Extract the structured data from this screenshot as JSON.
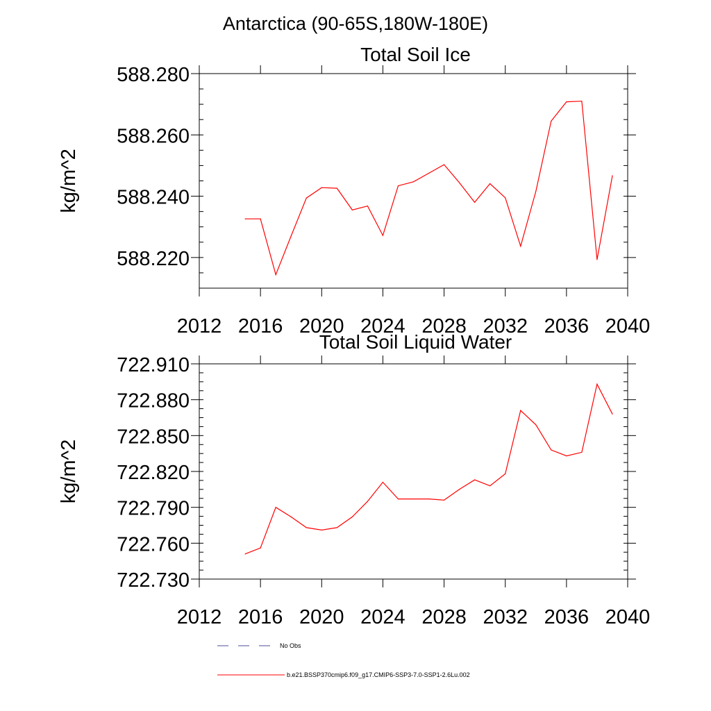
{
  "figure": {
    "title": "Antarctica (90-65S,180W-180E)"
  },
  "chart_data": [
    {
      "type": "line",
      "title": "Total Soil Ice",
      "xlabel": "",
      "ylabel": "kg/m^2",
      "xlim": [
        2012,
        2040
      ],
      "ylim": [
        588.21,
        588.28
      ],
      "xticks": [
        2012,
        2016,
        2020,
        2024,
        2028,
        2032,
        2036,
        2040
      ],
      "xtick_labels": [
        "2012",
        "2016",
        "2020",
        "2024",
        "2028",
        "2032",
        "2036",
        "2040"
      ],
      "yticks": [
        588.22,
        588.24,
        588.26,
        588.28
      ],
      "ytick_labels": [
        "588.220",
        "588.240",
        "588.260",
        "588.280"
      ],
      "grid": false,
      "series": [
        {
          "color": "#ff0000",
          "x": [
            2015,
            2016,
            2017,
            2018,
            2019,
            2020,
            2021,
            2022,
            2023,
            2024,
            2025,
            2026,
            2027,
            2028,
            2029,
            2030,
            2031,
            2032,
            2033,
            2034,
            2035,
            2036,
            2037,
            2038,
            2039
          ],
          "y": [
            588.2326,
            588.2326,
            588.2144,
            588.227,
            588.2394,
            588.2428,
            588.2426,
            588.2355,
            588.2368,
            588.2272,
            588.2434,
            588.2447,
            588.2475,
            588.2503,
            588.2444,
            588.238,
            588.2441,
            588.2395,
            588.2237,
            588.2416,
            588.2645,
            588.2708,
            588.271,
            588.2193,
            588.2467
          ]
        }
      ]
    },
    {
      "type": "line",
      "title": "Total Soil Liquid Water",
      "xlabel": "",
      "ylabel": "kg/m^2",
      "xlim": [
        2012,
        2040
      ],
      "ylim": [
        722.73,
        722.91
      ],
      "xticks": [
        2012,
        2016,
        2020,
        2024,
        2028,
        2032,
        2036,
        2040
      ],
      "xtick_labels": [
        "2012",
        "2016",
        "2020",
        "2024",
        "2028",
        "2032",
        "2036",
        "2040"
      ],
      "yticks": [
        722.73,
        722.76,
        722.79,
        722.82,
        722.85,
        722.88,
        722.91
      ],
      "ytick_labels": [
        "722.730",
        "722.760",
        "722.790",
        "722.820",
        "722.850",
        "722.880",
        "722.910"
      ],
      "grid": false,
      "series": [
        {
          "color": "#ff0000",
          "x": [
            2015,
            2016,
            2017,
            2018,
            2019,
            2020,
            2021,
            2022,
            2023,
            2024,
            2025,
            2026,
            2027,
            2028,
            2029,
            2030,
            2031,
            2032,
            2033,
            2034,
            2035,
            2036,
            2037,
            2038,
            2039
          ],
          "y": [
            722.751,
            722.756,
            722.79,
            722.782,
            722.773,
            722.771,
            722.773,
            722.782,
            722.795,
            722.811,
            722.797,
            722.797,
            722.797,
            722.796,
            722.805,
            722.813,
            722.808,
            722.818,
            722.871,
            722.859,
            722.838,
            722.833,
            722.836,
            722.893,
            722.868
          ]
        }
      ]
    }
  ],
  "legend": {
    "placement": "bottom-left",
    "items": [
      {
        "label": "No Obs",
        "color": "#4d4d99",
        "style": "dashed"
      },
      {
        "label": "b.e21.BSSP370cmip6.f09_g17.CMIP6-SSP3-7.0-SSP1-2.6Lu.002",
        "color": "#ff0000",
        "style": "solid"
      }
    ]
  }
}
